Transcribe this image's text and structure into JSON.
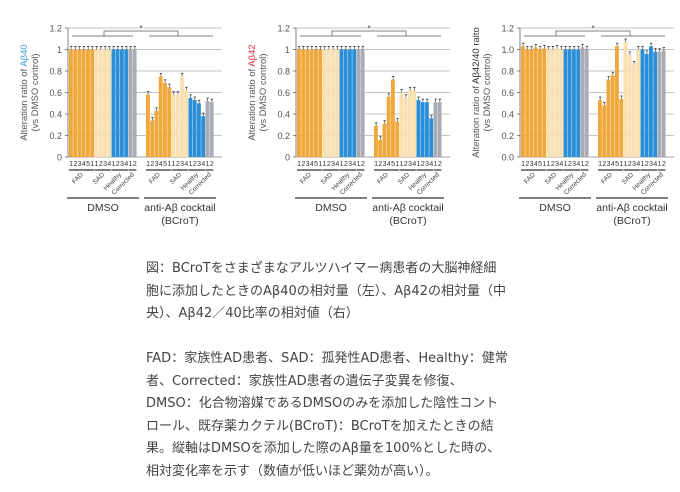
{
  "caption": {
    "lines": [
      "図：BCroTをさまざまなアルツハイマー病患者の大脳神経細",
      "胞に添加したときのAβ40の相対量（左）、Aβ42の相対量（中",
      "央）、Aβ42／40比率の相対値（右）"
    ]
  },
  "legend_text": {
    "lines": [
      "FAD：家族性AD患者、SAD：孤発性AD患者、Healthy：健常",
      "者、Corrected：家族性AD患者の遺伝子変異を修復、",
      "DMSO：化合物溶媒であるDMSOのみを添加した陰性コント",
      "ロール、既存薬カクテル(BCroT)：BCroTを加えたときの結",
      "果。縦軸はDMSOを添加した際のAβ量を100%とした時の、",
      "相対変化率を示す（数値が低いほど薬効が高い）。"
    ]
  },
  "colors": {
    "FAD": "#f0a83c",
    "SAD": "#f8e0b0",
    "Healthy": "#2a8fd6",
    "Corrected": "#a9acb4",
    "axis": "#666666",
    "grid": "#888888",
    "label_abeta40": "#3aa0d8",
    "label_abeta42": "#e0303a",
    "label_ratio": "#333333"
  },
  "chart_data": [
    {
      "type": "bar",
      "title": "",
      "ylabel_prefix": "Alteration ratio of ",
      "ylabel_highlight": "Aβ40",
      "ylabel_highlight_color": "#3aa0d8",
      "ylabel_line2": "(vs DMSO control)",
      "ylim": [
        0,
        1.2
      ],
      "yticks": [
        "0",
        "0.2",
        "0.4",
        "0.6",
        "0.8",
        "1",
        "1.2"
      ],
      "grid": true,
      "significance": "*",
      "groups": [
        "DMSO",
        "anti-Aβ cocktail"
      ],
      "group_sublabel": [
        "",
        "(BCroT)"
      ],
      "subgroups": [
        "FAD",
        "SAD",
        "Healthy",
        "Corrected"
      ],
      "bar_labels": [
        "1",
        "2",
        "3",
        "4",
        "5",
        "1",
        "1",
        "2",
        "3",
        "4",
        "1",
        "2",
        "3",
        "4",
        "1",
        "2"
      ],
      "bar_subgroup": [
        "FAD",
        "FAD",
        "FAD",
        "FAD",
        "FAD",
        "FAD",
        "SAD",
        "SAD",
        "SAD",
        "SAD",
        "Healthy",
        "Healthy",
        "Healthy",
        "Healthy",
        "Corrected",
        "Corrected"
      ],
      "series": [
        {
          "name": "DMSO",
          "values": [
            1,
            1,
            1,
            1,
            1,
            1,
            1,
            1,
            1,
            1,
            1,
            1,
            1,
            1,
            1,
            1
          ]
        },
        {
          "name": "anti-Aβ cocktail (BCroT)",
          "values": [
            0.58,
            0.34,
            0.43,
            0.75,
            0.69,
            0.65,
            0.58,
            0.58,
            0.75,
            0.62,
            0.55,
            0.53,
            0.5,
            0.38,
            0.52,
            0.51
          ]
        }
      ]
    },
    {
      "type": "bar",
      "title": "",
      "ylabel_prefix": "Alteration ratio of ",
      "ylabel_highlight": "Aβ42",
      "ylabel_highlight_color": "#e0303a",
      "ylabel_line2": "(vs DMSO control)",
      "ylim": [
        0,
        1.2
      ],
      "yticks": [
        "0",
        "0.2",
        "0.4",
        "0.6",
        "0.8",
        "1",
        "1.2"
      ],
      "grid": true,
      "significance": "*",
      "groups": [
        "DMSO",
        "anti-Aβ cocktail"
      ],
      "group_sublabel": [
        "",
        "(BCroT)"
      ],
      "subgroups": [
        "FAD",
        "SAD",
        "Healthy",
        "Corrected"
      ],
      "bar_labels": [
        "1",
        "2",
        "3",
        "4",
        "5",
        "1",
        "1",
        "2",
        "3",
        "4",
        "1",
        "2",
        "3",
        "4",
        "1",
        "2"
      ],
      "bar_subgroup": [
        "FAD",
        "FAD",
        "FAD",
        "FAD",
        "FAD",
        "FAD",
        "SAD",
        "SAD",
        "SAD",
        "SAD",
        "Healthy",
        "Healthy",
        "Healthy",
        "Healthy",
        "Corrected",
        "Corrected"
      ],
      "series": [
        {
          "name": "DMSO",
          "values": [
            1,
            1,
            1,
            1,
            1,
            1,
            1,
            1,
            1,
            1,
            1,
            1,
            1,
            1,
            1,
            1
          ]
        },
        {
          "name": "anti-Aβ cocktail (BCroT)",
          "values": [
            0.29,
            0.16,
            0.31,
            0.56,
            0.72,
            0.33,
            0.6,
            0.55,
            0.62,
            0.62,
            0.53,
            0.51,
            0.51,
            0.36,
            0.51,
            0.51
          ]
        }
      ]
    },
    {
      "type": "bar",
      "title": "",
      "ylabel_prefix": "Alteration ratio of ",
      "ylabel_highlight": "Aβ42/40 raito",
      "ylabel_highlight_color": "#333333",
      "ylabel_line2": "(vs DMSO control)",
      "ylim": [
        0,
        1.2
      ],
      "yticks": [
        "0.0",
        "0.2",
        "0.4",
        "0.6",
        "0.8",
        "1.0",
        "1.2"
      ],
      "grid": true,
      "significance": "*",
      "groups": [
        "DMSO",
        "anti-Aβ cocktail"
      ],
      "group_sublabel": [
        "",
        "(BCroT)"
      ],
      "subgroups": [
        "FAD",
        "SAD",
        "Healthy",
        "Corrected"
      ],
      "bar_labels": [
        "1",
        "2",
        "3",
        "4",
        "5",
        "1",
        "1",
        "2",
        "3",
        "4",
        "1",
        "2",
        "3",
        "4",
        "1",
        "2"
      ],
      "bar_subgroup": [
        "FAD",
        "FAD",
        "FAD",
        "FAD",
        "FAD",
        "FAD",
        "SAD",
        "SAD",
        "SAD",
        "SAD",
        "Healthy",
        "Healthy",
        "Healthy",
        "Healthy",
        "Corrected",
        "Corrected"
      ],
      "series": [
        {
          "name": "DMSO",
          "values": [
            1.03,
            1,
            1,
            1.02,
            1,
            1.01,
            1,
            1,
            1.01,
            1,
            1,
            1,
            1,
            1,
            1.02,
            1
          ]
        },
        {
          "name": "anti-Aβ cocktail (BCroT)",
          "values": [
            0.53,
            0.48,
            0.72,
            0.76,
            1.03,
            0.54,
            1.07,
            0.95,
            0.86,
            1.0,
            1.0,
            0.96,
            1.03,
            0.98,
            0.98,
            0.99
          ]
        }
      ]
    }
  ]
}
